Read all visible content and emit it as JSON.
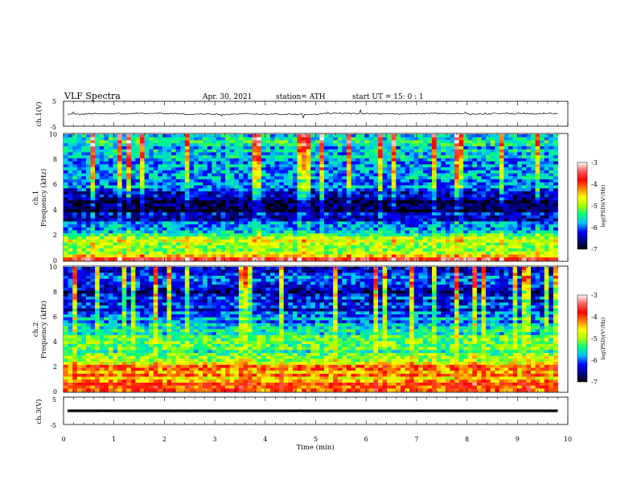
{
  "header": {
    "title": "VLF  Spectra",
    "date": "Apr. 30, 2021",
    "station": "station= ATH",
    "start": "start  UT  =    15: 0   : 1"
  },
  "chart_data": [
    {
      "type": "line",
      "name": "ch1-voltage",
      "ylabel": "ch.1(V)",
      "ylim": [
        -5,
        5
      ],
      "yticks": [
        "5",
        "-5"
      ],
      "xlim": [
        0,
        10
      ],
      "trace_level": 0,
      "trace_noise": 0.45,
      "x_end": 9.8,
      "color": "#000000"
    },
    {
      "type": "heatmap",
      "name": "ch1-spectrogram",
      "ylabel": "ch.1",
      "ylabel2": "Frequency  (kHz)",
      "ylim": [
        0,
        10
      ],
      "yticks": [
        "10",
        "8",
        "6",
        "4",
        "2",
        "0"
      ],
      "xlim": [
        0,
        10
      ],
      "x_end": 9.8,
      "colorbar": {
        "label": "log(PSD)(V²/Hz)",
        "range": [
          -7,
          -3
        ],
        "ticks": [
          "-3",
          "-4",
          "-5",
          "-6",
          "-7"
        ],
        "colors": [
          "#000000",
          "#00008b",
          "#0000ff",
          "#00bfff",
          "#00ff80",
          "#aaff00",
          "#ffff00",
          "#ff8000",
          "#ff0000",
          "#ff6060",
          "#ffffff"
        ]
      },
      "profile": [
        [
          0.0,
          -3.5
        ],
        [
          0.3,
          -4.4
        ],
        [
          0.7,
          -4.9
        ],
        [
          1.2,
          -5.2
        ],
        [
          1.8,
          -4.7
        ],
        [
          2.2,
          -5.4
        ],
        [
          2.8,
          -5.9
        ],
        [
          3.4,
          -6.3
        ],
        [
          4.0,
          -6.7
        ],
        [
          4.8,
          -6.8
        ],
        [
          5.4,
          -6.4
        ],
        [
          6.0,
          -6.0
        ],
        [
          6.6,
          -5.6
        ],
        [
          7.5,
          -5.9
        ],
        [
          8.5,
          -5.6
        ],
        [
          10.0,
          -5.7
        ]
      ]
    },
    {
      "type": "heatmap",
      "name": "ch2-spectrogram",
      "ylabel": "ch.2",
      "ylabel2": "Frequency  (kHz)",
      "ylim": [
        0,
        10
      ],
      "yticks": [
        "10",
        "8",
        "6",
        "4",
        "2",
        "0"
      ],
      "xlim": [
        0,
        10
      ],
      "x_end": 9.8,
      "colorbar": {
        "label": "log(PSD)(V²/Hz)",
        "range": [
          -7,
          -3
        ],
        "ticks": [
          "-3",
          "-4",
          "-5",
          "-6",
          "-7"
        ],
        "colors": [
          "#000000",
          "#00008b",
          "#0000ff",
          "#00bfff",
          "#00ff80",
          "#aaff00",
          "#ffff00",
          "#ff8000",
          "#ff0000",
          "#ff6060",
          "#ffffff"
        ]
      },
      "profile": [
        [
          0.0,
          -4.2
        ],
        [
          0.6,
          -4.0
        ],
        [
          1.0,
          -4.3
        ],
        [
          1.6,
          -4.5
        ],
        [
          2.0,
          -4.0
        ],
        [
          2.5,
          -4.8
        ],
        [
          3.2,
          -5.2
        ],
        [
          4.0,
          -5.4
        ],
        [
          4.8,
          -5.4
        ],
        [
          5.4,
          -5.6
        ],
        [
          6.0,
          -6.0
        ],
        [
          7.0,
          -6.3
        ],
        [
          8.0,
          -6.4
        ],
        [
          9.0,
          -6.2
        ],
        [
          10.0,
          -6.3
        ]
      ]
    },
    {
      "type": "line",
      "name": "ch3-voltage",
      "ylabel": "ch.3(V)",
      "ylim": [
        -5,
        5
      ],
      "yticks": [
        "5",
        "-5"
      ],
      "xlim": [
        0,
        10
      ],
      "trace_level": 0,
      "trace_noise": 0.02,
      "x_end": 9.8,
      "color": "#000000"
    }
  ],
  "xaxis": {
    "label": "Time  (min)",
    "ticks": [
      "0",
      "1",
      "2",
      "3",
      "4",
      "5",
      "6",
      "7",
      "8",
      "9",
      "10"
    ]
  }
}
